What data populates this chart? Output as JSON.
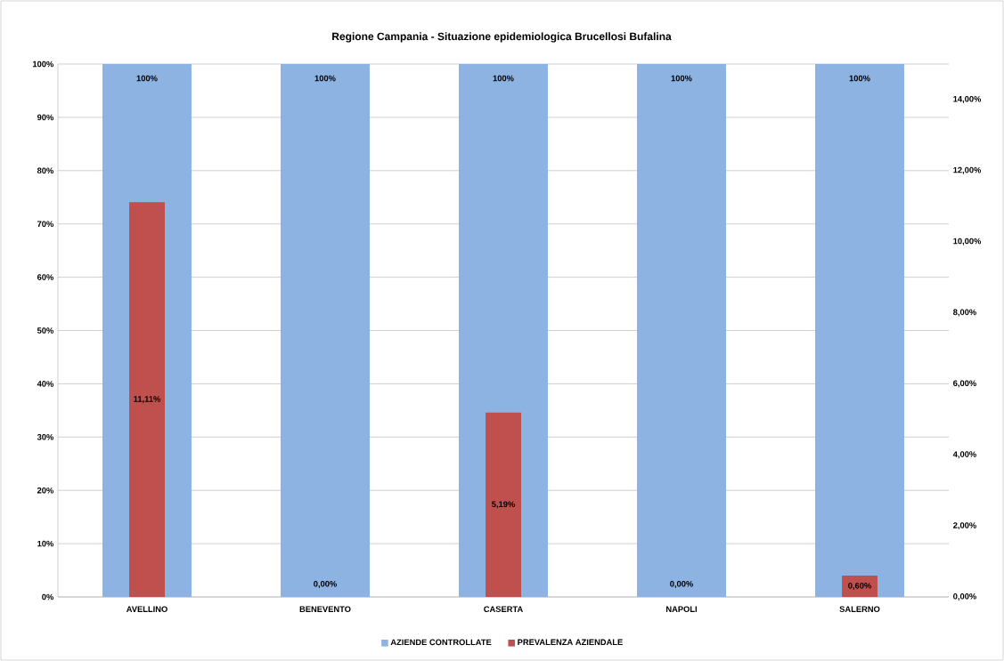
{
  "chart_data": {
    "type": "bar",
    "title": "Regione Campania - Situazione epidemiologica Brucellosi Bufalina",
    "categories": [
      "AVELLINO",
      "BENEVENTO",
      "CASERTA",
      "NAPOLI",
      "SALERNO"
    ],
    "series": [
      {
        "name": "AZIENDE CONTROLLATE",
        "color": "#8db3e2",
        "values": [
          100,
          100,
          100,
          100,
          100
        ],
        "value_labels": [
          "100%",
          "100%",
          "100%",
          "100%",
          "100%"
        ]
      },
      {
        "name": "PREVALENZA AZIENDALE",
        "color": "#c0504d",
        "axis": "y2",
        "values": [
          11.11,
          0,
          5.19,
          0,
          0.6
        ],
        "value_labels": [
          "11,11%",
          "0,00%",
          "5,19%",
          "0,00%",
          "0,60%"
        ]
      }
    ],
    "ylim": [
      0,
      100
    ],
    "yticks": [
      {
        "value": 0,
        "label": "0%"
      },
      {
        "value": 10,
        "label": "10%"
      },
      {
        "value": 20,
        "label": "20%"
      },
      {
        "value": 30,
        "label": "30%"
      },
      {
        "value": 40,
        "label": "40%"
      },
      {
        "value": 50,
        "label": "50%"
      },
      {
        "value": 60,
        "label": "60%"
      },
      {
        "value": 70,
        "label": "70%"
      },
      {
        "value": 80,
        "label": "80%"
      },
      {
        "value": 90,
        "label": "90%"
      },
      {
        "value": 100,
        "label": "100%"
      }
    ],
    "y2lim": [
      0,
      15
    ],
    "y2ticks": [
      {
        "value": 0,
        "label": "0,00%"
      },
      {
        "value": 2,
        "label": "2,00%"
      },
      {
        "value": 4,
        "label": "4,00%"
      },
      {
        "value": 6,
        "label": "6,00%"
      },
      {
        "value": 8,
        "label": "8,00%"
      },
      {
        "value": 10,
        "label": "10,00%"
      },
      {
        "value": 12,
        "label": "12,00%"
      },
      {
        "value": 14,
        "label": "14,00%"
      }
    ],
    "grid": "y",
    "legend": "bottom"
  }
}
